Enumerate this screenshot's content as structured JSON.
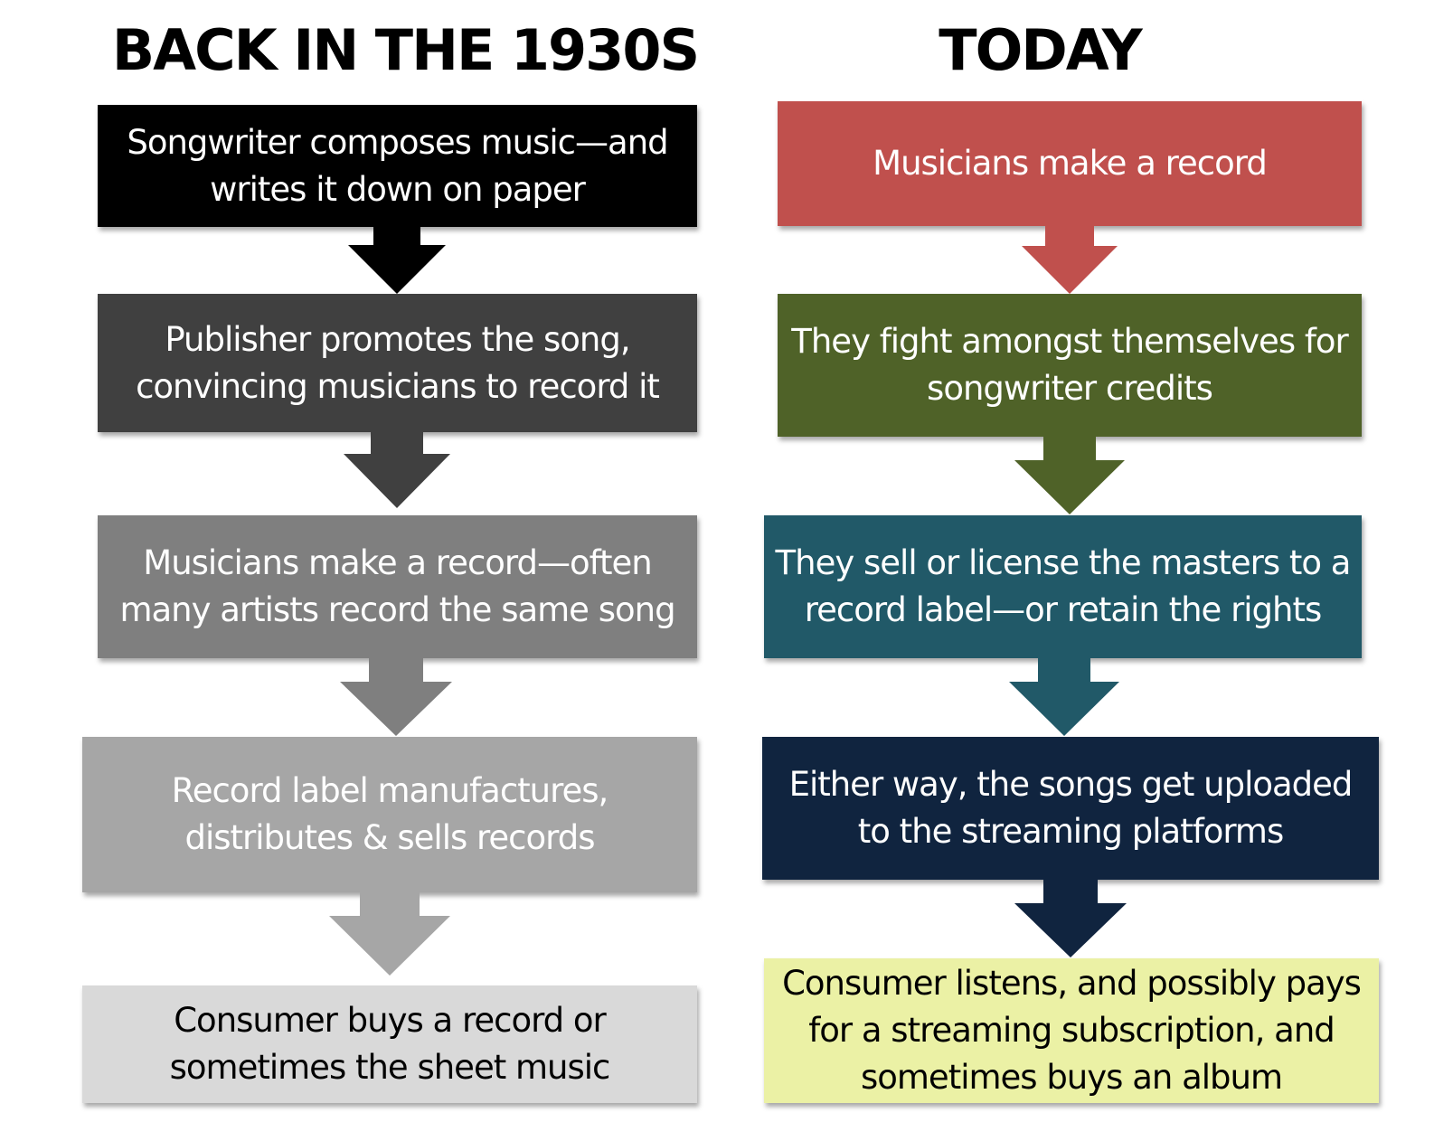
{
  "left_column": {
    "heading": "BACK IN THE 1930S",
    "steps": [
      {
        "text": "Songwriter composes music—and writes it down on paper",
        "color": "#000000",
        "text_color": "#ffffff"
      },
      {
        "text": "Publisher promotes the song, convincing musicians to record it",
        "color": "#404040",
        "text_color": "#ffffff"
      },
      {
        "text": "Musicians make a record—often many artists record the same song",
        "color": "#7f7f7f",
        "text_color": "#ffffff"
      },
      {
        "text": "Record label manufactures, distributes & sells records",
        "color": "#a6a6a6",
        "text_color": "#ffffff"
      },
      {
        "text": "Consumer buys a record or sometimes the sheet music",
        "color": "#d9d9d9",
        "text_color": "#000000"
      }
    ]
  },
  "right_column": {
    "heading": "TODAY",
    "steps": [
      {
        "text": "Musicians make a record",
        "color": "#c0504d",
        "text_color": "#ffffff"
      },
      {
        "text": "They fight amongst themselves for songwriter credits",
        "color": "#4f6228",
        "text_color": "#ffffff"
      },
      {
        "text": "They sell or license the masters to a record label—or retain the rights",
        "color": "#215968",
        "text_color": "#ffffff"
      },
      {
        "text": "Either way, the songs get uploaded to the streaming platforms",
        "color": "#10243f",
        "text_color": "#ffffff"
      },
      {
        "text": "Consumer listens, and possibly pays for a streaming subscription, and sometimes buys an album",
        "color": "#ebf1a5",
        "text_color": "#000000"
      }
    ]
  }
}
